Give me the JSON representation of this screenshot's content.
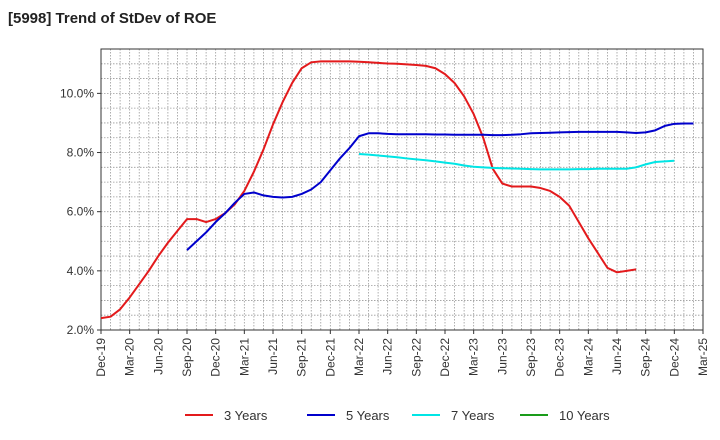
{
  "chart_data": {
    "type": "line",
    "title": "[5998]  Trend of StDev of ROE",
    "xlabel": "",
    "ylabel": "",
    "grid": true,
    "legend_placement": "bottom",
    "ylim": [
      2.0,
      11.5
    ],
    "y_ticks": [
      2.0,
      4.0,
      6.0,
      8.0,
      10.0
    ],
    "y_tick_labels": [
      "2.0%",
      "4.0%",
      "6.0%",
      "8.0%",
      "10.0%"
    ],
    "x_tick_labels": [
      "Dec-19",
      "Mar-20",
      "Jun-20",
      "Sep-20",
      "Dec-20",
      "Mar-21",
      "Jun-21",
      "Sep-21",
      "Dec-21",
      "Mar-22",
      "Jun-22",
      "Sep-22",
      "Dec-22",
      "Mar-23",
      "Jun-23",
      "Sep-23",
      "Dec-23",
      "Mar-24",
      "Jun-24",
      "Sep-24",
      "Dec-24",
      "Mar-25"
    ],
    "series": [
      {
        "name": "3 Years",
        "color": "#e31a1c",
        "start_index": 0,
        "values": [
          2.4,
          2.45,
          2.7,
          3.1,
          3.55,
          4.0,
          4.5,
          4.95,
          5.35,
          5.75,
          5.75,
          5.65,
          5.75,
          5.95,
          6.25,
          6.7,
          7.35,
          8.1,
          8.95,
          9.7,
          10.35,
          10.85,
          11.05,
          11.08,
          11.08,
          11.08,
          11.08,
          11.07,
          11.05,
          11.03,
          11.01,
          11.0,
          10.98,
          10.96,
          10.93,
          10.85,
          10.65,
          10.35,
          9.9,
          9.3,
          8.5,
          7.45,
          6.95,
          6.85,
          6.85,
          6.85,
          6.8,
          6.7,
          6.5,
          6.2,
          5.65,
          5.1,
          4.6,
          4.1,
          3.95,
          4.0,
          4.05
        ]
      },
      {
        "name": "5 Years",
        "color": "#0000cc",
        "start_index": 9,
        "values": [
          4.7,
          5.0,
          5.3,
          5.65,
          5.95,
          6.3,
          6.6,
          6.65,
          6.55,
          6.5,
          6.48,
          6.5,
          6.6,
          6.75,
          7.0,
          7.4,
          7.8,
          8.15,
          8.55,
          8.65,
          8.65,
          8.63,
          8.62,
          8.62,
          8.62,
          8.62,
          8.61,
          8.61,
          8.6,
          8.6,
          8.6,
          8.6,
          8.59,
          8.59,
          8.6,
          8.62,
          8.65,
          8.66,
          8.67,
          8.68,
          8.69,
          8.7,
          8.7,
          8.7,
          8.7,
          8.7,
          8.68,
          8.66,
          8.68,
          8.75,
          8.9,
          8.97,
          8.98,
          8.98
        ]
      },
      {
        "name": "7 Years",
        "color": "#00e5e5",
        "start_index": 27,
        "values": [
          7.95,
          7.93,
          7.9,
          7.87,
          7.84,
          7.8,
          7.77,
          7.74,
          7.7,
          7.66,
          7.62,
          7.56,
          7.52,
          7.5,
          7.48,
          7.47,
          7.46,
          7.45,
          7.44,
          7.43,
          7.43,
          7.43,
          7.43,
          7.44,
          7.44,
          7.45,
          7.45,
          7.45,
          7.45,
          7.5,
          7.6,
          7.68,
          7.7,
          7.72
        ]
      },
      {
        "name": "10 Years",
        "color": "#1a9c1a",
        "start_index": 0,
        "values": []
      }
    ]
  }
}
